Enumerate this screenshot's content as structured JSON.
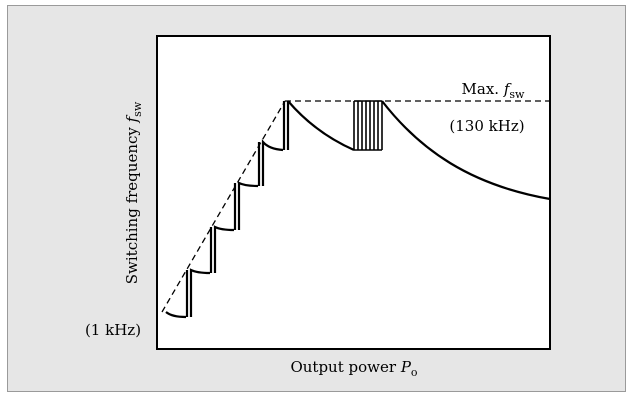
{
  "diagram": {
    "ylabel_main": "Switching frequency ",
    "ylabel_symbol": "f",
    "ylabel_subscript": "sw",
    "xlabel_main": "Output power ",
    "xlabel_symbol": "P",
    "xlabel_subscript": "o",
    "max_label_prefix": "Max. ",
    "max_label_symbol": "f",
    "max_label_subscript": "sw",
    "max_value_label": "(130 kHz)",
    "min_value_label": "(1 kHz)",
    "colors": {
      "background": "#e6e6e6",
      "plot": "#ffffff",
      "ink": "#000000"
    }
  }
}
